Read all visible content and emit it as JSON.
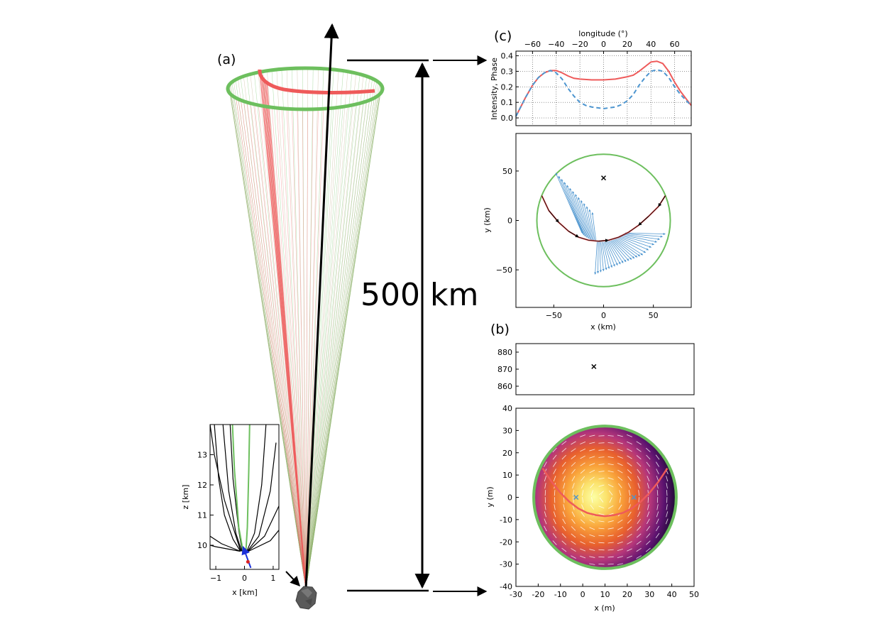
{
  "labels": {
    "panel_a": "(a)",
    "panel_b": "(b)",
    "panel_c": "(c)",
    "distance": "500 km"
  },
  "colors": {
    "green": "#6dbf5e",
    "red": "#ee5a5a",
    "blue": "#4d95cf",
    "black": "#000000",
    "grid": "#555555",
    "asteroid": "#5a5a5a"
  },
  "chart_data": [
    {
      "id": "inset-fieldlines",
      "type": "line",
      "xlabel": "x [km]",
      "ylabel": "z [km]",
      "xlim": [
        -1.2,
        1.2
      ],
      "ylim": [
        9.2,
        14
      ],
      "xticks": [
        -1,
        0,
        1
      ],
      "yticks": [
        10,
        11,
        12,
        13
      ],
      "series": [
        {
          "color": "black",
          "x": [
            -0.13,
            -0.3,
            -0.7,
            -1.05,
            -1.2
          ],
          "y": [
            9.8,
            10.3,
            11.5,
            13.0,
            14.0
          ]
        },
        {
          "color": "black",
          "x": [
            -0.1,
            -0.3,
            -0.55,
            -0.75
          ],
          "y": [
            9.8,
            10.4,
            11.8,
            14.0
          ]
        },
        {
          "color": "black",
          "x": [
            -0.08,
            -0.2,
            -0.4,
            -0.5
          ],
          "y": [
            9.8,
            10.5,
            12.2,
            14.0
          ]
        },
        {
          "color": "green",
          "x": [
            -0.05,
            -0.2,
            -0.35,
            -0.42
          ],
          "y": [
            9.8,
            10.6,
            12.5,
            14.0
          ]
        },
        {
          "color": "green",
          "x": [
            0.05,
            0.1,
            0.15,
            0.18
          ],
          "y": [
            9.8,
            10.6,
            12.5,
            14.0
          ]
        },
        {
          "color": "black",
          "x": [
            0.08,
            0.35,
            0.6,
            0.75
          ],
          "y": [
            9.8,
            10.4,
            12.0,
            14.0
          ]
        },
        {
          "color": "black",
          "x": [
            0.1,
            0.5,
            0.9,
            1.1
          ],
          "y": [
            9.8,
            10.3,
            11.8,
            13.4
          ]
        },
        {
          "color": "black",
          "x": [
            0.12,
            0.7,
            1.2
          ],
          "y": [
            9.8,
            10.3,
            11.3
          ]
        },
        {
          "color": "black",
          "x": [
            0.14,
            0.9,
            1.2
          ],
          "y": [
            9.8,
            10.15,
            10.5
          ]
        },
        {
          "color": "black",
          "x": [
            -0.14,
            -0.8,
            -1.2
          ],
          "y": [
            9.8,
            10.05,
            10.3
          ]
        },
        {
          "color": "black",
          "x": [
            -0.15,
            -1.0,
            -1.2
          ],
          "y": [
            9.8,
            9.95,
            10.0
          ]
        },
        {
          "color": "black",
          "x": [
            -0.14,
            -0.4,
            -0.7,
            -0.9,
            -1.05
          ],
          "y": [
            9.8,
            10.2,
            11.0,
            12.2,
            14.0
          ]
        }
      ],
      "arrow": {
        "x": [
          0.22,
          -0.05
        ],
        "y": [
          9.25,
          9.95
        ]
      },
      "point": {
        "x": 0.12,
        "y": 9.45
      }
    },
    {
      "id": "intensity-phase",
      "type": "line",
      "xlabel": "longitude (°)",
      "ylabel": "Intensity, Phase",
      "xlim": [
        -74,
        74
      ],
      "ylim": [
        -0.05,
        0.43
      ],
      "xticks": [
        -60,
        -40,
        -20,
        0,
        20,
        40,
        60
      ],
      "yticks": [
        0.0,
        0.1,
        0.2,
        0.3,
        0.4
      ],
      "grid": true,
      "series": [
        {
          "color": "red",
          "style": "solid",
          "x": [
            -74,
            -66,
            -60,
            -55,
            -50,
            -45,
            -40,
            -35,
            -30,
            -25,
            -20,
            -10,
            0,
            10,
            20,
            25,
            30,
            35,
            40,
            45,
            50,
            55,
            60,
            65,
            70,
            74
          ],
          "y": [
            0.01,
            0.13,
            0.21,
            0.26,
            0.29,
            0.305,
            0.305,
            0.29,
            0.27,
            0.255,
            0.25,
            0.245,
            0.245,
            0.25,
            0.265,
            0.275,
            0.3,
            0.33,
            0.36,
            0.365,
            0.35,
            0.3,
            0.23,
            0.17,
            0.12,
            0.08
          ]
        },
        {
          "color": "blue",
          "style": "dashed",
          "x": [
            -74,
            -66,
            -60,
            -55,
            -50,
            -45,
            -40,
            -35,
            -30,
            -25,
            -20,
            -15,
            -10,
            -5,
            0,
            5,
            10,
            15,
            20,
            25,
            30,
            35,
            40,
            45,
            50,
            55,
            60,
            65,
            70,
            74
          ],
          "y": [
            0.01,
            0.13,
            0.21,
            0.26,
            0.29,
            0.305,
            0.29,
            0.25,
            0.19,
            0.14,
            0.1,
            0.08,
            0.07,
            0.065,
            0.06,
            0.065,
            0.07,
            0.085,
            0.11,
            0.15,
            0.21,
            0.26,
            0.3,
            0.31,
            0.3,
            0.26,
            0.2,
            0.15,
            0.11,
            0.08
          ]
        }
      ]
    },
    {
      "id": "footprint-top",
      "type": "scatter",
      "xlabel": "x (km)",
      "ylabel": "y (km)",
      "xlim": [
        -88,
        88
      ],
      "ylim": [
        -88,
        88
      ],
      "xticks": [
        -50,
        0,
        50
      ],
      "yticks": [
        -50,
        0,
        50
      ],
      "circle": {
        "cx": 0,
        "cy": 0,
        "r": 67
      },
      "marker": {
        "x": 0,
        "y": 43
      },
      "arc": {
        "x": [
          -62,
          -55,
          -45,
          -35,
          -25,
          -15,
          -5,
          5,
          15,
          25,
          35,
          45,
          55,
          62
        ],
        "y": [
          25,
          10,
          -2,
          -11,
          -17,
          -20,
          -21,
          -20,
          -17,
          -12,
          -5,
          4,
          14,
          25
        ]
      }
    },
    {
      "id": "source-top",
      "type": "scatter",
      "xlim": [
        -30,
        50
      ],
      "ylim": [
        855,
        885
      ],
      "yticks": [
        860,
        870,
        880
      ],
      "marker": {
        "x": 5,
        "y": 871.5
      }
    },
    {
      "id": "source-heatmap",
      "type": "heatmap",
      "xlabel": "x (m)",
      "ylabel": "y (m)",
      "xlim": [
        -30,
        50
      ],
      "ylim": [
        -40,
        40
      ],
      "xticks": [
        -30,
        -20,
        -10,
        0,
        10,
        20,
        30,
        40,
        50
      ],
      "yticks": [
        40,
        30,
        20,
        10,
        0,
        -10,
        -20,
        -30,
        -40
      ],
      "circle": {
        "cx": 10,
        "cy": 0,
        "r": 32
      },
      "markers": [
        {
          "x": -3,
          "y": 0
        },
        {
          "x": 23,
          "y": 0
        }
      ],
      "arc": {
        "x": [
          -18,
          -14,
          -10,
          -6,
          -2,
          2,
          6,
          10,
          14,
          18,
          22,
          26,
          30,
          34,
          38
        ],
        "y": [
          13,
          7,
          2,
          -2,
          -5,
          -7,
          -8,
          -8.5,
          -8,
          -7,
          -5,
          -2,
          2,
          7,
          13
        ]
      }
    }
  ]
}
